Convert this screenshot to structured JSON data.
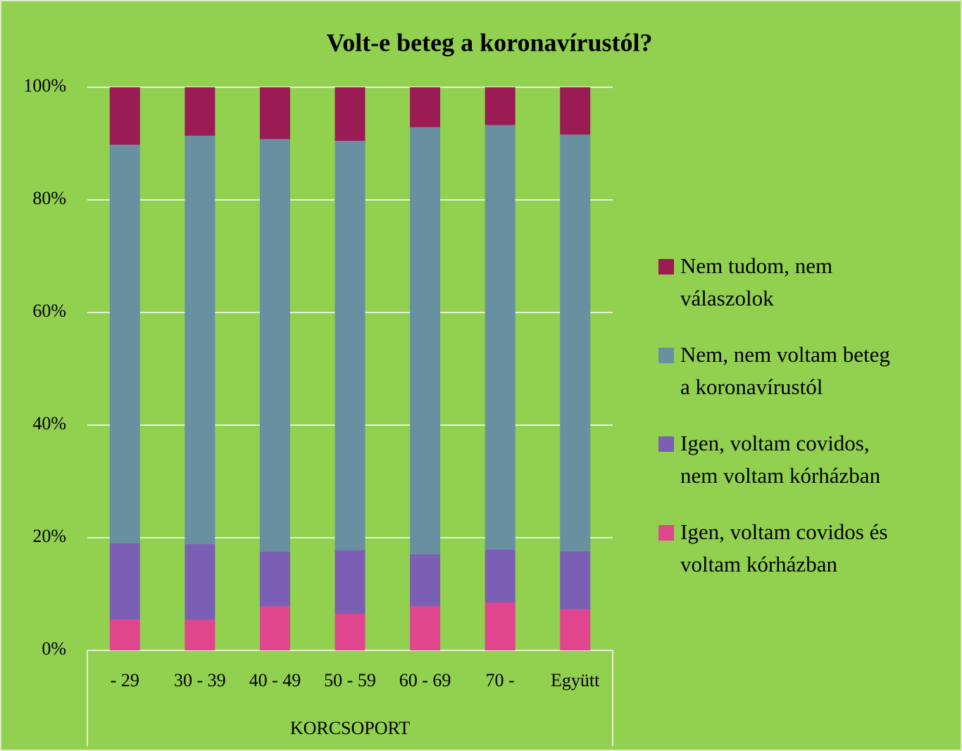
{
  "chart_data": {
    "type": "stacked_bar",
    "title": "Volt-e beteg a koronavírustól?",
    "x_label": "KORCSOPORT",
    "categories": [
      "- 29",
      "30 - 39",
      "40 - 49",
      "50 - 59",
      "60 - 69",
      "70 -",
      "Együtt"
    ],
    "series": [
      {
        "name": "Igen, voltam covidos és voltam kórházban",
        "color": "#e0468e",
        "values": [
          5.5,
          5.4,
          7.8,
          6.5,
          7.8,
          8.5,
          7.3
        ]
      },
      {
        "name": "Igen, voltam covidos, nem voltam kórházban",
        "color": "#7b5fb4",
        "values": [
          13.5,
          13.5,
          9.7,
          11.3,
          9.3,
          9.4,
          10.3
        ]
      },
      {
        "name": "Nem, nem voltam beteg a koronavírustól",
        "color": "#6890a0",
        "values": [
          70.8,
          72.5,
          73.3,
          72.7,
          75.8,
          75.4,
          74.0
        ]
      },
      {
        "name": "Nem tudom, nem válaszolok",
        "color": "#9b1b55",
        "values": [
          10.2,
          8.6,
          9.2,
          9.5,
          7.1,
          6.7,
          8.4
        ]
      }
    ],
    "ylim": [
      0,
      100
    ],
    "yticks": [
      {
        "value": 0,
        "label": "0%"
      },
      {
        "value": 20,
        "label": "20%"
      },
      {
        "value": 40,
        "label": "40%"
      },
      {
        "value": 60,
        "label": "60%"
      },
      {
        "value": 80,
        "label": "80%"
      },
      {
        "value": 100,
        "label": "100%"
      }
    ],
    "grid": true,
    "legend": "right"
  }
}
